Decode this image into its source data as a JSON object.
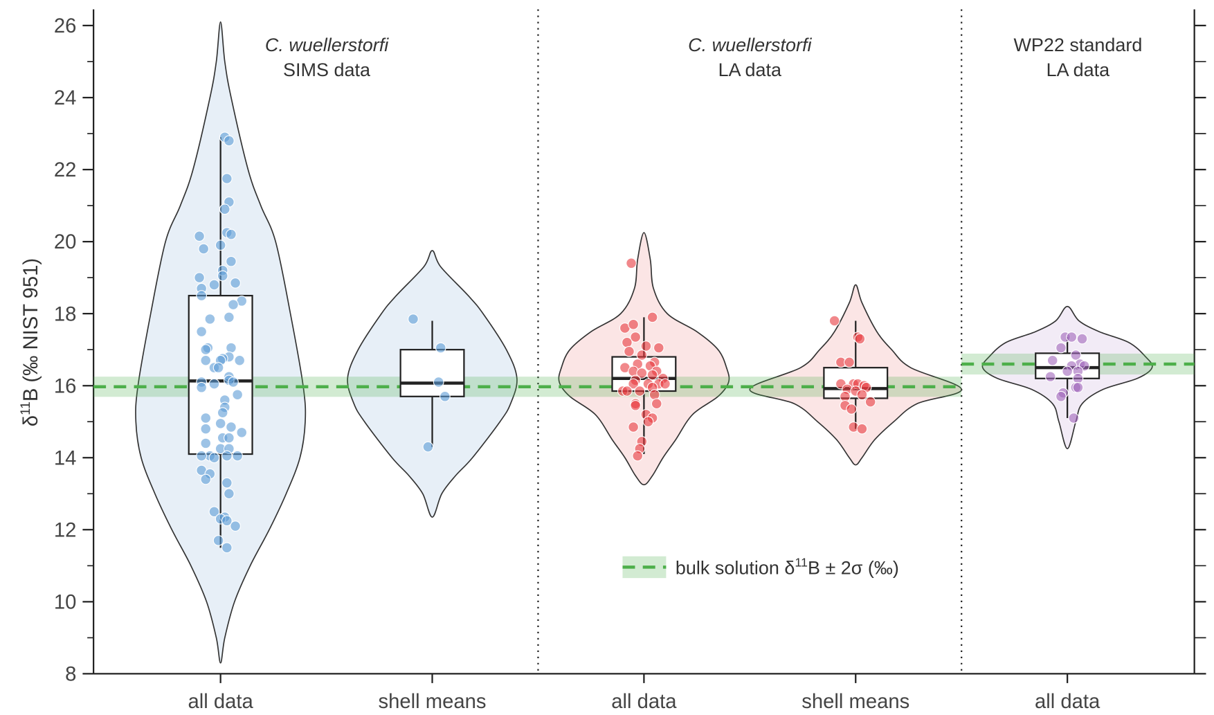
{
  "chart_data": {
    "type": "violin",
    "ylabel": {
      "before": "δ",
      "sup": "11",
      "after": "B (‰ NIST 951)"
    },
    "ylim": [
      8,
      26.45
    ],
    "yticks": [
      8,
      10,
      12,
      14,
      16,
      18,
      20,
      22,
      24,
      26
    ],
    "minor_yticks": [
      9,
      11,
      13,
      15,
      17,
      19,
      21,
      23,
      25
    ],
    "xlim": [
      -0.6,
      4.6
    ],
    "categories": [
      "all data",
      "shell means",
      "all data",
      "shell means",
      "all data"
    ],
    "dividers": [
      1.5,
      3.5
    ],
    "panels": [
      {
        "lines": [
          "C. wuellerstorfi",
          "SIMS data"
        ],
        "italic": [
          true,
          false
        ]
      },
      {
        "lines": [
          "C. wuellerstorfi",
          "LA data"
        ],
        "italic": [
          true,
          false
        ]
      },
      {
        "lines": [
          "WP22 standard",
          "LA data"
        ],
        "italic": [
          false,
          false
        ]
      }
    ],
    "groups": [
      {
        "color": "#5b9bd5",
        "fill": "#c9dcee",
        "violin": {
          "y": [
            26.1,
            25,
            24,
            22,
            21,
            20,
            18,
            16,
            15,
            14,
            13,
            12,
            11,
            10,
            9,
            8.3
          ],
          "halfwidth": [
            0,
            0.02,
            0.05,
            0.13,
            0.19,
            0.26,
            0.33,
            0.39,
            0.4,
            0.375,
            0.31,
            0.23,
            0.14,
            0.066,
            0.02,
            0
          ]
        },
        "box": {
          "whislo": 11.5,
          "q1": 14.1,
          "med": 16.13,
          "q3": 18.5,
          "whishi": 22.9
        },
        "points": {
          "x": [
            0.02,
            0.04,
            0.03,
            0.04,
            0.02,
            0.03,
            0.05,
            -0.1,
            -0.08,
            0.0,
            0.05,
            0.01,
            0.01,
            -0.1,
            0.07,
            -0.03,
            -0.09,
            -0.09,
            0.1,
            0.06,
            -0.05,
            0.04,
            -0.09,
            -0.06,
            0.05,
            -0.07,
            0.04,
            0.01,
            0.09,
            -0.07,
            0.0,
            -0.03,
            -0.01,
            0.04,
            0.04,
            -0.09,
            0.06,
            -0.03,
            -0.09,
            0.08,
            0.02,
            0.02,
            -0.07,
            0.01,
            0.0,
            0.05,
            0.1,
            -0.07,
            0.01,
            0.04,
            -0.07,
            0.0,
            0.04,
            -0.05,
            -0.09,
            -0.03,
            0.03,
            0.08,
            -0.09,
            -0.05,
            -0.07,
            0.03,
            0.04,
            -0.03,
            0.02,
            0.0,
            0.03,
            0.07,
            -0.01,
            0.03
          ],
          "y": [
            22.9,
            22.8,
            21.75,
            21.1,
            20.9,
            20.25,
            20.2,
            20.15,
            19.8,
            19.9,
            19.45,
            19.2,
            19.05,
            19.0,
            18.85,
            18.8,
            18.7,
            18.5,
            18.35,
            18.25,
            17.85,
            17.9,
            17.5,
            17.05,
            17.05,
            17.0,
            16.8,
            16.75,
            16.7,
            16.7,
            16.7,
            16.5,
            16.5,
            16.25,
            16.15,
            16.1,
            16.1,
            16.05,
            15.95,
            15.75,
            15.6,
            15.4,
            15.1,
            15.25,
            14.95,
            14.85,
            14.7,
            14.8,
            14.55,
            14.55,
            14.4,
            14.25,
            14.25,
            14.05,
            14.05,
            14.0,
            14.05,
            14.05,
            13.65,
            13.55,
            13.4,
            13.3,
            13.0,
            12.5,
            12.35,
            12.3,
            12.25,
            12.1,
            11.7,
            11.5
          ]
        }
      },
      {
        "color": "#5b9bd5",
        "fill": "#c9dcee",
        "violin": {
          "y": [
            19.75,
            19.3,
            18.5,
            18,
            17,
            16.2,
            15.5,
            15,
            14,
            13.5,
            13,
            12.35
          ],
          "halfwidth": [
            0,
            0.04,
            0.17,
            0.24,
            0.35,
            0.4,
            0.37,
            0.32,
            0.19,
            0.11,
            0.045,
            0
          ]
        },
        "box": {
          "whislo": 14.3,
          "q1": 15.7,
          "med": 16.07,
          "q3": 17.0,
          "whishi": 17.8
        },
        "points": {
          "x": [
            0.91,
            1.04,
            1.03,
            1.06,
            0.98
          ],
          "y": [
            17.85,
            17.05,
            16.1,
            15.7,
            14.3
          ]
        }
      },
      {
        "color": "#e8393e",
        "fill": "#f6c6c6",
        "violin": {
          "y": [
            20.25,
            19.5,
            18.7,
            18,
            17.5,
            17,
            16.5,
            16.1,
            15.7,
            15.2,
            14.5,
            14,
            13.5,
            13.25
          ],
          "halfwidth": [
            0,
            0.03,
            0.045,
            0.11,
            0.25,
            0.35,
            0.39,
            0.4,
            0.35,
            0.23,
            0.15,
            0.09,
            0.04,
            0
          ]
        },
        "box": {
          "whislo": 14.1,
          "q1": 15.85,
          "med": 16.2,
          "q3": 16.8,
          "whishi": 17.9
        },
        "points": {
          "x": [
            1.94,
            2.04,
            1.91,
            1.95,
            1.96,
            1.92,
            2.07,
            2.01,
            1.93,
            1.99,
            2.05,
            1.97,
            2.03,
            1.91,
            2.06,
            1.95,
            1.99,
            2.04,
            2.09,
            1.96,
            2.02,
            1.95,
            2.07,
            2.1,
            2.04,
            1.9,
            1.92,
            1.98,
            2.05,
            1.96,
            2.06,
            1.96,
            2.01,
            2.04,
            2.02,
            1.95,
            1.99,
            1.98,
            1.97
          ],
          "y": [
            19.4,
            17.9,
            17.6,
            17.7,
            17.35,
            17.2,
            17.05,
            17.1,
            16.95,
            16.85,
            16.65,
            16.6,
            16.55,
            16.5,
            16.4,
            16.4,
            16.35,
            16.3,
            16.2,
            16.15,
            16.05,
            16.05,
            16.05,
            16.05,
            15.95,
            15.85,
            15.85,
            15.85,
            15.75,
            15.5,
            15.5,
            15.45,
            15.2,
            15.1,
            15.0,
            14.85,
            14.45,
            14.25,
            14.05
          ]
        }
      },
      {
        "color": "#e8393e",
        "fill": "#f6c6c6",
        "violin": {
          "y": [
            18.8,
            18.3,
            17.5,
            17,
            16.5,
            15.9,
            15.5,
            15,
            14.5,
            14,
            13.8
          ],
          "halfwidth": [
            0,
            0.03,
            0.1,
            0.17,
            0.26,
            0.5,
            0.29,
            0.18,
            0.09,
            0.03,
            0
          ]
        },
        "box": {
          "whislo": 14.8,
          "q1": 15.65,
          "med": 15.92,
          "q3": 16.5,
          "whishi": 17.8
        },
        "points": {
          "x": [
            2.9,
            3.01,
            3.02,
            2.93,
            2.97,
            2.99,
            3.01,
            2.93,
            3.04,
            2.96,
            3.05,
            3.0,
            3.03,
            2.95,
            3.07,
            2.95,
            2.98,
            2.99,
            3.03
          ],
          "y": [
            17.8,
            17.35,
            17.3,
            16.65,
            16.65,
            16.05,
            16.05,
            16.05,
            16.0,
            15.9,
            15.95,
            15.85,
            15.75,
            15.7,
            15.55,
            15.45,
            15.35,
            14.85,
            14.8
          ]
        }
      },
      {
        "color": "#a066bb",
        "fill": "#e2d2ea",
        "violin": {
          "y": [
            18.2,
            17.8,
            17.5,
            17.2,
            16.8,
            16.5,
            16.2,
            15.9,
            15.5,
            15,
            14.25
          ],
          "halfwidth": [
            0,
            0.055,
            0.15,
            0.29,
            0.37,
            0.4,
            0.33,
            0.17,
            0.07,
            0.04,
            0
          ]
        },
        "box": {
          "whislo": 15.1,
          "q1": 16.2,
          "med": 16.5,
          "q3": 16.9,
          "whishi": 17.35
        },
        "points": {
          "x": [
            3.99,
            4.02,
            4.07,
            3.97,
            4.04,
            3.93,
            4.06,
            4.02,
            4.08,
            4.05,
            4.0,
            3.92,
            4.05,
            4.04,
            4.05,
            3.98,
            3.97,
            4.03
          ],
          "y": [
            17.35,
            17.35,
            17.3,
            17.05,
            16.85,
            16.7,
            16.6,
            16.55,
            16.55,
            16.4,
            16.4,
            16.25,
            16.2,
            15.95,
            15.95,
            15.8,
            15.7,
            15.1
          ]
        }
      }
    ],
    "reference": {
      "color": "#4daf4a",
      "ranges": [
        {
          "x": [
            -0.6,
            3.5
          ],
          "value": 15.97,
          "err": 0.28
        },
        {
          "x": [
            3.5,
            4.6
          ],
          "value": 16.6,
          "err": 0.29
        }
      ]
    },
    "legend": {
      "before": "bulk solution  δ",
      "sup": "11",
      "after": "B  ± 2σ (‰)"
    }
  }
}
